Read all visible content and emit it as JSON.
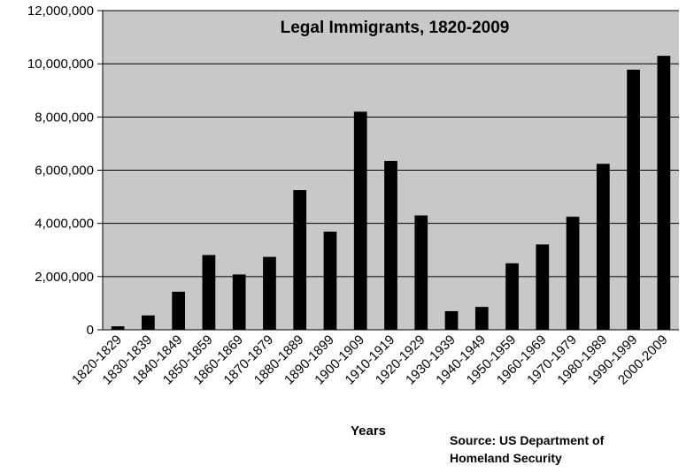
{
  "chart_data": {
    "type": "bar",
    "title": "Legal Immigrants, 1820-2009",
    "xlabel": "Years",
    "ylabel": "",
    "source_lines": [
      "Source: US Department of",
      "Homeland Security"
    ],
    "categories": [
      "1820-1829",
      "1830-1839",
      "1840-1849",
      "1850-1859",
      "1860-1869",
      "1870-1879",
      "1880-1889",
      "1890-1899",
      "1900-1909",
      "1910-1919",
      "1920-1929",
      "1930-1939",
      "1940-1949",
      "1950-1959",
      "1960-1969",
      "1970-1979",
      "1980-1989",
      "1990-1999",
      "2000-2009"
    ],
    "values": [
      130000,
      540000,
      1430000,
      2810000,
      2080000,
      2740000,
      5250000,
      3690000,
      8200000,
      6350000,
      4300000,
      700000,
      860000,
      2500000,
      3210000,
      4250000,
      6240000,
      9780000,
      10300000
    ],
    "ylim": [
      0,
      12000000
    ],
    "yticks": [
      0,
      2000000,
      4000000,
      6000000,
      8000000,
      10000000,
      12000000
    ],
    "ytick_labels": [
      "0",
      "2,000,000",
      "4,000,000",
      "6,000,000",
      "8,000,000",
      "10,000,000",
      "12,000,000"
    ],
    "grid": true,
    "legend": "none",
    "colors": {
      "plot_background": "#c8c8c8",
      "bar": "#000000",
      "grid": "#000000"
    }
  }
}
